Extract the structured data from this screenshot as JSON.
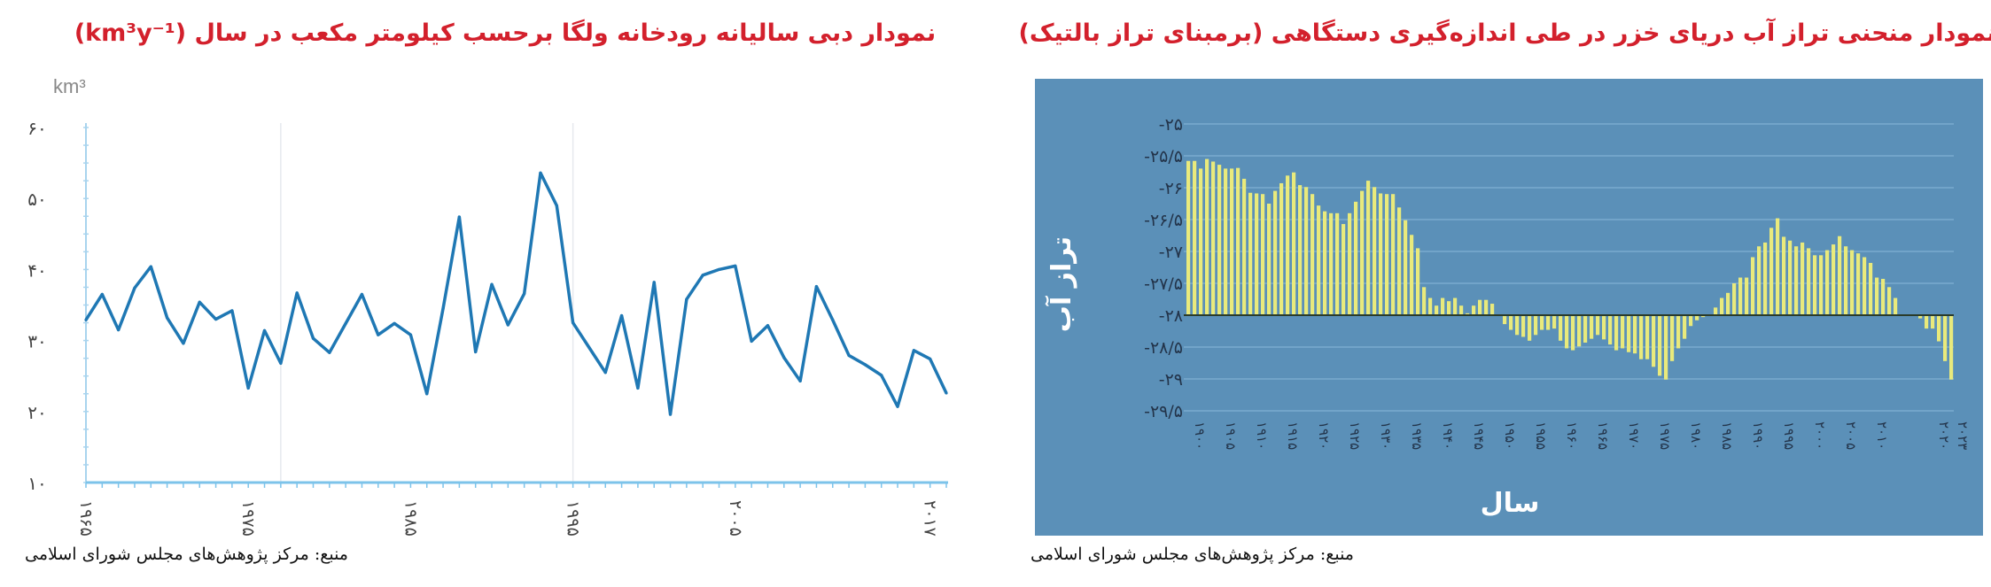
{
  "chart_data": [
    {
      "type": "line",
      "title": "نمودار دبی سالیانه رودخانه ولگا برحسب کیلومتر مکعب در سال (km³y⁻¹)",
      "ylabel": "km³",
      "xlabel": "",
      "ylim": [
        10,
        60
      ],
      "xlim": [
        1965,
        2018
      ],
      "grid": "vertical",
      "color": "#1f78b4",
      "yticks": [
        10,
        20,
        30,
        40,
        50,
        60
      ],
      "ytick_labels": [
        "۱۰",
        "۲۰",
        "۳۰",
        "۴۰",
        "۵۰",
        "۶۰"
      ],
      "xticks": [
        1965,
        1975,
        1985,
        1995,
        2005,
        2017
      ],
      "xtick_labels": [
        "۱۹۶۵",
        "۱۹۷۵",
        "۱۹۸۵",
        "۱۹۹۵",
        "۲۰۰۵",
        "۲۰۱۷"
      ],
      "x": [
        1965,
        1966,
        1967,
        1968,
        1969,
        1970,
        1971,
        1972,
        1973,
        1974,
        1975,
        1976,
        1977,
        1978,
        1979,
        1980,
        1981,
        1982,
        1983,
        1984,
        1985,
        1986,
        1987,
        1988,
        1989,
        1990,
        1991,
        1992,
        1993,
        1994,
        1995,
        1996,
        1997,
        1998,
        1999,
        2000,
        2001,
        2002,
        2003,
        2004,
        2005,
        2006,
        2007,
        2008,
        2009,
        2010,
        2011,
        2012,
        2013,
        2014,
        2015,
        2016,
        2017,
        2018
      ],
      "values": [
        32.9,
        36.5,
        31.5,
        37.4,
        40.4,
        33.2,
        29.6,
        35.4,
        33.0,
        34.2,
        23.3,
        31.4,
        26.8,
        36.7,
        30.3,
        28.3,
        32.4,
        36.5,
        30.8,
        32.4,
        30.8,
        22.5,
        34.5,
        47.4,
        28.4,
        37.9,
        32.2,
        36.6,
        53.6,
        49.0,
        32.5,
        29.0,
        25.5,
        33.5,
        23.3,
        38.2,
        19.6,
        35.8,
        39.2,
        40.0,
        40.5,
        29.9,
        32.1,
        27.6,
        24.3,
        37.6,
        32.9,
        27.9,
        26.6,
        25.1,
        20.7,
        28.6,
        27.4,
        22.6
      ],
      "source": "منبع: مرکز پژوهش‌های مجلس شورای اسلامی"
    },
    {
      "type": "bar",
      "title": "نمودار منحنی تراز آب دریای خزر در طی اندازه‌گیری دستگاهی (برمبنای تراز بالتیک)",
      "ylabel": "تراز آب",
      "xlabel": "سال",
      "ylim": [
        -29.5,
        -25
      ],
      "baseline": -28,
      "grid": "horizontal",
      "background": "#5b90b8",
      "bar_color": "#e9ea7c",
      "yticks": [
        -25,
        -25.5,
        -26,
        -26.5,
        -27,
        -27.5,
        -28,
        -28.5,
        -29,
        -29.5
      ],
      "ytick_labels": [
        "۲۵",
        "۲۵/۵",
        "۲۶",
        "۲۶/۵",
        "۲۷",
        "۲۷/۵",
        "۲۸",
        "۲۸/۵",
        "۲۹",
        "۲۹/۵"
      ],
      "xticks": [
        1900,
        1905,
        1910,
        1915,
        1920,
        1925,
        1930,
        1935,
        1940,
        1945,
        1950,
        1955,
        1960,
        1965,
        1970,
        1975,
        1980,
        1985,
        1990,
        1995,
        2000,
        2005,
        2010,
        2020,
        2023
      ],
      "xtick_labels": [
        "۱۹۰۰",
        "۱۹۰۵",
        "۱۹۱۰",
        "۱۹۱۵",
        "۱۹۲۰",
        "۱۹۲۵",
        "۱۹۳۰",
        "۱۹۳۵",
        "۱۹۴۰",
        "۱۹۴۵",
        "۱۹۵۰",
        "۱۹۵۵",
        "۱۹۶۰",
        "۱۹۶۵",
        "۱۹۷۰",
        "۱۹۷۵",
        "۱۹۸۰",
        "۱۹۸۵",
        "۱۹۹۰",
        "۱۹۹۵",
        "۲۰۰۰",
        "۲۰۰۵",
        "۲۰۱۰",
        "۲۰۲۰",
        "۲۰۲۳"
      ],
      "x_start": 1900,
      "values": [
        -25.58,
        -25.58,
        -25.7,
        -25.55,
        -25.59,
        -25.64,
        -25.7,
        -25.7,
        -25.69,
        -25.86,
        -26.08,
        -26.09,
        -26.1,
        -26.25,
        -26.05,
        -25.93,
        -25.81,
        -25.76,
        -25.96,
        -25.99,
        -26.1,
        -26.28,
        -26.37,
        -26.4,
        -26.4,
        -26.57,
        -26.4,
        -26.22,
        -26.05,
        -25.89,
        -25.99,
        -26.09,
        -26.1,
        -26.1,
        -26.31,
        -26.51,
        -26.74,
        -26.95,
        -27.56,
        -27.73,
        -27.85,
        -27.73,
        -27.78,
        -27.73,
        -27.85,
        -27.97,
        -27.85,
        -27.76,
        -27.76,
        -27.82,
        -28.0,
        -28.14,
        -28.23,
        -28.31,
        -28.34,
        -28.4,
        -28.31,
        -28.23,
        -28.23,
        -28.21,
        -28.4,
        -28.52,
        -28.55,
        -28.49,
        -28.43,
        -28.37,
        -28.31,
        -28.38,
        -28.46,
        -28.55,
        -28.52,
        -28.58,
        -28.6,
        -28.69,
        -28.69,
        -28.81,
        -28.95,
        -29.01,
        -28.72,
        -28.52,
        -28.37,
        -28.17,
        -28.08,
        -28.03,
        -27.99,
        -27.88,
        -27.73,
        -27.65,
        -27.5,
        -27.41,
        -27.41,
        -27.09,
        -26.92,
        -26.86,
        -26.63,
        -26.48,
        -26.77,
        -26.83,
        -26.92,
        -26.86,
        -26.95,
        -27.06,
        -27.06,
        -26.98,
        -26.89,
        -26.76,
        -26.92,
        -26.98,
        -27.03,
        -27.09,
        -27.18,
        -27.41,
        -27.43,
        -27.56,
        -27.73,
        -28.0,
        -28.0,
        -28.0,
        -28.05,
        -28.21,
        -28.21,
        -28.41,
        -28.72,
        -29.01
      ],
      "source": "منبع: مرکز پژوهش‌های مجلس شورای اسلامی"
    }
  ]
}
